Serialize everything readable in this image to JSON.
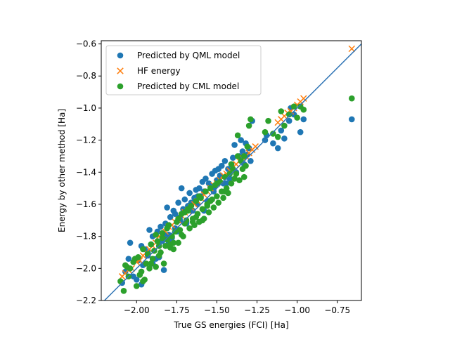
{
  "chart_data": {
    "type": "scatter",
    "title": "",
    "xlabel": "True GS energies (FCI) [Ha]",
    "ylabel": "Energy by other method [Ha]",
    "xlim": [
      -2.22,
      -0.6
    ],
    "ylim": [
      -2.2,
      -0.58
    ],
    "xticks": [
      -2.0,
      -1.75,
      -1.5,
      -1.25,
      -1.0,
      -0.75
    ],
    "xtick_labels": [
      "−2.00",
      "−1.75",
      "−1.50",
      "−1.25",
      "−1.00",
      "−0.75"
    ],
    "yticks": [
      -2.2,
      -2.0,
      -1.8,
      -1.6,
      -1.4,
      -1.2,
      -1.0,
      -0.8,
      -0.6
    ],
    "ytick_labels": [
      "−2.2",
      "−2.0",
      "−1.8",
      "−1.6",
      "−1.4",
      "−1.2",
      "−1.0",
      "−0.8",
      "−0.6"
    ],
    "reference_line": {
      "type": "y=x",
      "color": "#2f74b5"
    },
    "grid": false,
    "legend_position": "upper-left",
    "series": [
      {
        "name": "Predicted by QML model",
        "marker": "circle",
        "color": "#1f77b4",
        "x": [
          -2.09,
          -2.07,
          -2.05,
          -2.04,
          -2.02,
          -2.0,
          -1.99,
          -1.97,
          -1.96,
          -1.95,
          -1.93,
          -1.92,
          -1.91,
          -1.9,
          -1.88,
          -1.87,
          -1.86,
          -1.85,
          -1.84,
          -1.83,
          -1.82,
          -1.81,
          -1.8,
          -1.79,
          -1.78,
          -1.77,
          -1.76,
          -1.75,
          -1.74,
          -1.73,
          -1.72,
          -1.71,
          -1.7,
          -1.69,
          -1.68,
          -1.67,
          -1.66,
          -1.65,
          -1.64,
          -1.63,
          -1.62,
          -1.61,
          -1.6,
          -1.59,
          -1.58,
          -1.57,
          -1.56,
          -1.55,
          -1.54,
          -1.53,
          -1.52,
          -1.51,
          -1.5,
          -1.49,
          -1.48,
          -1.47,
          -1.46,
          -1.45,
          -1.43,
          -1.42,
          -1.41,
          -1.4,
          -1.39,
          -1.38,
          -1.36,
          -1.35,
          -1.34,
          -1.33,
          -1.32,
          -1.31,
          -1.3,
          -1.29,
          -1.28,
          -1.2,
          -1.19,
          -1.15,
          -1.12,
          -1.1,
          -1.08,
          -1.05,
          -1.04,
          -1.02,
          -0.98,
          -0.96,
          -0.66,
          -1.97,
          -1.93,
          -1.9,
          -1.86,
          -1.83,
          -1.8,
          -1.76,
          -1.73,
          -1.69,
          -1.66,
          -1.62,
          -1.58,
          -1.55,
          -1.52,
          -1.48,
          -1.44
        ],
        "y": [
          -2.09,
          -2.02,
          -1.94,
          -1.84,
          -2.05,
          -2.07,
          -1.95,
          -2.1,
          -1.98,
          -1.88,
          -1.92,
          -1.76,
          -1.85,
          -1.8,
          -1.94,
          -1.77,
          -1.86,
          -1.74,
          -1.83,
          -2.01,
          -1.72,
          -1.62,
          -1.79,
          -1.68,
          -1.81,
          -1.64,
          -1.66,
          -1.77,
          -1.59,
          -1.68,
          -1.5,
          -1.63,
          -1.57,
          -1.71,
          -1.61,
          -1.53,
          -1.59,
          -1.64,
          -1.56,
          -1.51,
          -1.6,
          -1.5,
          -1.55,
          -1.46,
          -1.52,
          -1.44,
          -1.58,
          -1.47,
          -1.49,
          -1.41,
          -1.5,
          -1.39,
          -1.45,
          -1.38,
          -1.42,
          -1.36,
          -1.47,
          -1.33,
          -1.38,
          -1.44,
          -1.35,
          -1.31,
          -1.23,
          -1.4,
          -1.3,
          -1.2,
          -1.27,
          -1.35,
          -1.22,
          -1.29,
          -1.25,
          -1.33,
          -1.08,
          -1.2,
          -1.17,
          -1.22,
          -1.25,
          -1.14,
          -1.19,
          -1.08,
          -1.0,
          -1.04,
          -1.15,
          -1.07,
          -1.07,
          -1.86,
          -1.9,
          -1.97,
          -1.93,
          -1.79,
          -1.84,
          -1.75,
          -1.7,
          -1.72,
          -1.6,
          -1.55,
          -1.64,
          -1.58,
          -1.52,
          -1.43,
          -1.47
        ]
      },
      {
        "name": "HF energy",
        "marker": "x",
        "color": "#ff7f0e",
        "x": [
          -2.09,
          -2.07,
          -2.05,
          -2.03,
          -2.0,
          -1.98,
          -1.96,
          -1.94,
          -1.92,
          -1.9,
          -1.88,
          -1.86,
          -1.84,
          -1.82,
          -1.8,
          -1.78,
          -1.76,
          -1.74,
          -1.72,
          -1.7,
          -1.68,
          -1.66,
          -1.64,
          -1.62,
          -1.6,
          -1.58,
          -1.56,
          -1.54,
          -1.52,
          -1.5,
          -1.48,
          -1.46,
          -1.44,
          -1.42,
          -1.4,
          -1.38,
          -1.36,
          -1.34,
          -1.32,
          -1.3,
          -1.28,
          -1.26,
          -1.12,
          -1.1,
          -1.08,
          -1.06,
          -1.04,
          -1.02,
          -1.0,
          -0.98,
          -0.96,
          -0.66
        ],
        "y": [
          -2.05,
          -2.03,
          -2.01,
          -2.0,
          -1.96,
          -1.95,
          -1.92,
          -1.9,
          -1.88,
          -1.86,
          -1.84,
          -1.8,
          -1.79,
          -1.77,
          -1.74,
          -1.73,
          -1.71,
          -1.7,
          -1.67,
          -1.65,
          -1.64,
          -1.62,
          -1.6,
          -1.58,
          -1.56,
          -1.54,
          -1.52,
          -1.5,
          -1.48,
          -1.47,
          -1.45,
          -1.42,
          -1.41,
          -1.39,
          -1.37,
          -1.35,
          -1.33,
          -1.31,
          -1.3,
          -1.28,
          -1.26,
          -1.24,
          -1.09,
          -1.07,
          -1.05,
          -1.03,
          -1.02,
          -1.0,
          -0.98,
          -0.96,
          -0.94,
          -0.63
        ]
      },
      {
        "name": "Predicted by CML model",
        "marker": "circle",
        "color": "#2ca02c",
        "x": [
          -2.1,
          -2.08,
          -2.07,
          -2.05,
          -2.04,
          -2.02,
          -2.0,
          -1.99,
          -1.98,
          -1.97,
          -1.96,
          -1.95,
          -1.94,
          -1.93,
          -1.92,
          -1.91,
          -1.9,
          -1.89,
          -1.88,
          -1.87,
          -1.86,
          -1.85,
          -1.84,
          -1.83,
          -1.82,
          -1.81,
          -1.8,
          -1.79,
          -1.78,
          -1.77,
          -1.76,
          -1.75,
          -1.74,
          -1.73,
          -1.72,
          -1.71,
          -1.7,
          -1.69,
          -1.68,
          -1.67,
          -1.66,
          -1.65,
          -1.64,
          -1.63,
          -1.62,
          -1.61,
          -1.6,
          -1.59,
          -1.58,
          -1.57,
          -1.56,
          -1.55,
          -1.54,
          -1.53,
          -1.52,
          -1.51,
          -1.5,
          -1.49,
          -1.48,
          -1.47,
          -1.46,
          -1.45,
          -1.44,
          -1.43,
          -1.42,
          -1.41,
          -1.4,
          -1.39,
          -1.38,
          -1.37,
          -1.36,
          -1.35,
          -1.34,
          -1.33,
          -1.32,
          -1.31,
          -1.3,
          -1.29,
          -1.2,
          -1.18,
          -1.15,
          -1.12,
          -1.1,
          -1.08,
          -1.05,
          -1.02,
          -1.0,
          -0.98,
          -0.96,
          -0.66,
          -2.06,
          -2.01,
          -1.96,
          -1.91,
          -1.86,
          -1.81,
          -1.77,
          -1.72,
          -1.68,
          -1.63,
          -1.59,
          -1.54,
          -1.5,
          -1.45,
          -1.41,
          -1.37,
          -1.33,
          -1.88,
          -1.84,
          -1.79,
          -1.74,
          -1.7,
          -1.65,
          -1.61,
          -1.56
        ],
        "y": [
          -2.08,
          -2.14,
          -1.98,
          -2.05,
          -2.0,
          -1.96,
          -2.11,
          -1.93,
          -2.04,
          -2.02,
          -1.88,
          -2.07,
          -1.97,
          -1.91,
          -2.0,
          -1.85,
          -1.94,
          -1.89,
          -1.99,
          -1.83,
          -1.92,
          -1.9,
          -1.78,
          -1.97,
          -1.86,
          -1.82,
          -1.73,
          -1.87,
          -1.8,
          -1.88,
          -1.77,
          -1.71,
          -1.84,
          -1.76,
          -1.66,
          -1.8,
          -1.72,
          -1.7,
          -1.64,
          -1.75,
          -1.61,
          -1.69,
          -1.73,
          -1.58,
          -1.66,
          -1.71,
          -1.56,
          -1.63,
          -1.69,
          -1.52,
          -1.6,
          -1.65,
          -1.5,
          -1.57,
          -1.62,
          -1.48,
          -1.55,
          -1.59,
          -1.46,
          -1.52,
          -1.56,
          -1.43,
          -1.5,
          -1.53,
          -1.41,
          -1.47,
          -1.38,
          -1.44,
          -1.41,
          -1.17,
          -1.45,
          -1.33,
          -1.38,
          -1.3,
          -1.36,
          -1.24,
          -1.11,
          -1.07,
          -1.15,
          -1.08,
          -1.16,
          -1.18,
          -1.02,
          -1.11,
          -1.04,
          -0.99,
          -1.06,
          -0.99,
          -1.01,
          -0.94,
          -1.99,
          -1.94,
          -2.08,
          -1.97,
          -1.86,
          -1.75,
          -1.84,
          -1.79,
          -1.63,
          -1.68,
          -1.7,
          -1.58,
          -1.47,
          -1.52,
          -1.35,
          -1.3,
          -1.43,
          -1.79,
          -1.81,
          -1.85,
          -1.69,
          -1.65,
          -1.71,
          -1.55,
          -1.61
        ]
      }
    ]
  }
}
